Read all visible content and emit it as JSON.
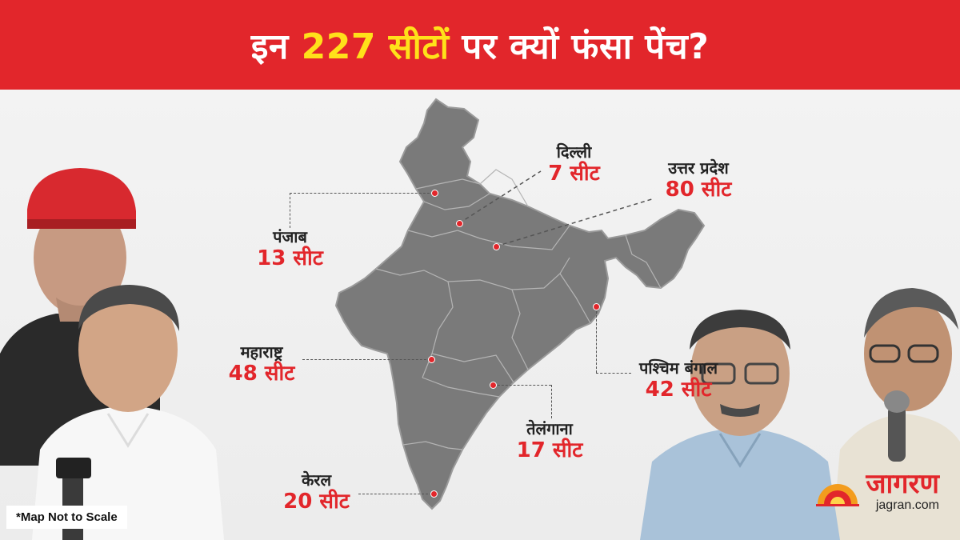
{
  "header": {
    "title_pre": "इन",
    "title_highlight": "227 सीटों",
    "title_post": "पर क्यों फंसा पेंच?"
  },
  "colors": {
    "accent": "#e2262b",
    "highlight": "#ffe11a",
    "map_fill": "#7a7a7a"
  },
  "map": {
    "regions": [
      {
        "id": "punjab",
        "state": "पंजाब",
        "seats": "13 सीट"
      },
      {
        "id": "delhi",
        "state": "दिल्ली",
        "seats": "7 सीट"
      },
      {
        "id": "uttar-pradesh",
        "state": "उत्तर प्रदेश",
        "seats": "80 सीट"
      },
      {
        "id": "maharashtra",
        "state": "महाराष्ट्र",
        "seats": "48 सीट"
      },
      {
        "id": "west-bengal",
        "state": "पश्चिम बंगाल",
        "seats": "42 सीट"
      },
      {
        "id": "telangana",
        "state": "तेलंगाना",
        "seats": "17 सीट"
      },
      {
        "id": "kerala",
        "state": "केरल",
        "seats": "20 सीट"
      }
    ]
  },
  "footer": {
    "map_note": "*Map Not to Scale",
    "brand_name": "जागरण",
    "brand_url": "jagran.com",
    "brand_icon": "sunrise-logo-icon"
  }
}
